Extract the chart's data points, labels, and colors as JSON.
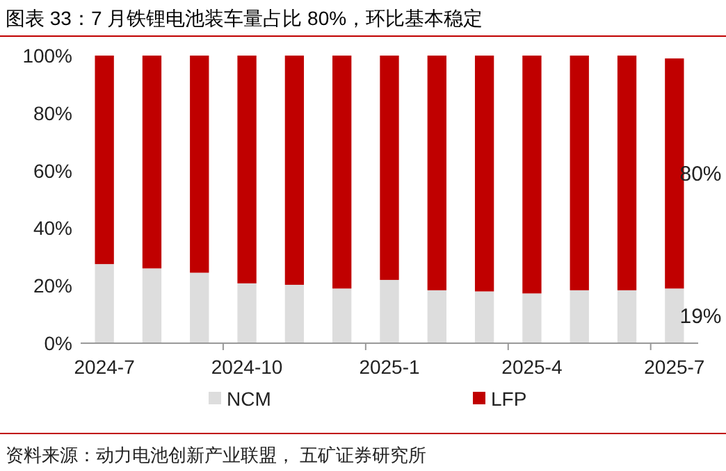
{
  "chart_data": {
    "type": "bar",
    "stacked": true,
    "title": "图表 33：7 月铁锂电池装车量占比 80%，环比基本稳定",
    "categories": [
      "2024-7",
      null,
      null,
      "2024-10",
      null,
      null,
      "2025-1",
      null,
      null,
      "2025-4",
      null,
      null,
      "2025-7"
    ],
    "series": [
      {
        "name": "NCM",
        "color": "#dddddd",
        "values": [
          27.5,
          26,
          24.5,
          20.8,
          20.3,
          19,
          22,
          18.4,
          18,
          17.3,
          18.4,
          18.4,
          19
        ],
        "value_labels": [
          null,
          null,
          null,
          null,
          null,
          null,
          null,
          null,
          null,
          null,
          null,
          null,
          "19%"
        ]
      },
      {
        "name": "LFP",
        "color": "#c00000",
        "values": [
          72.5,
          74,
          75.5,
          79.2,
          79.7,
          81,
          78,
          81.6,
          82,
          82.7,
          81.6,
          81.6,
          80
        ],
        "value_labels": [
          null,
          null,
          null,
          null,
          null,
          null,
          null,
          null,
          null,
          null,
          null,
          null,
          "80%"
        ]
      }
    ],
    "ylim": [
      0,
      100
    ],
    "yticks": [
      {
        "value": 0,
        "label": "0%"
      },
      {
        "value": 20,
        "label": "20%"
      },
      {
        "value": 40,
        "label": "40%"
      },
      {
        "value": 60,
        "label": "60%"
      },
      {
        "value": 80,
        "label": "80%"
      },
      {
        "value": 100,
        "label": "100%"
      }
    ],
    "legend": "bottom",
    "grid": false,
    "annotations": [
      "资料来源：动力电池创新产业联盟， 五矿证券研究所"
    ]
  }
}
